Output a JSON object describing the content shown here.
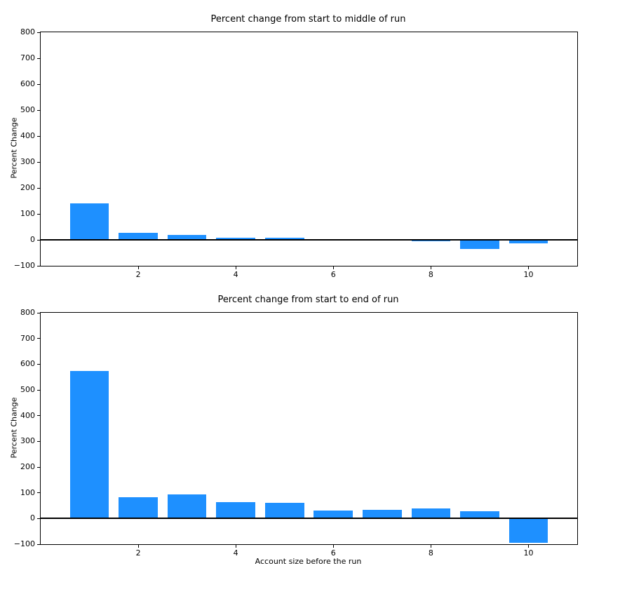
{
  "page": {
    "background": "#ffffff",
    "text_color": "#000000"
  },
  "chart_data": [
    {
      "type": "bar",
      "title": "Percent change from start to middle of run",
      "ylabel": "Percent Change",
      "xlabel": "",
      "x": [
        1,
        2,
        3,
        4,
        5,
        6,
        7,
        8,
        9,
        10
      ],
      "values": [
        140,
        27,
        20,
        8,
        8,
        4,
        1,
        -6,
        -35,
        -14
      ],
      "ylim": [
        -100,
        800
      ],
      "xlim": [
        0,
        11
      ],
      "yticks": [
        -100,
        0,
        100,
        200,
        300,
        400,
        500,
        600,
        700,
        800
      ],
      "xticks": [
        2,
        4,
        6,
        8,
        10
      ],
      "bar_width": 0.8,
      "bar_color": "#1E90FF",
      "zero_line": true,
      "grid": false,
      "legend": null
    },
    {
      "type": "bar",
      "title": "Percent change from start to end of run",
      "ylabel": "Percent Change",
      "xlabel": "Account size before the run",
      "x": [
        1,
        2,
        3,
        4,
        5,
        6,
        7,
        8,
        9,
        10
      ],
      "values": [
        575,
        82,
        95,
        63,
        60,
        32,
        35,
        38,
        29,
        -95
      ],
      "ylim": [
        -100,
        800
      ],
      "xlim": [
        0,
        11
      ],
      "yticks": [
        -100,
        0,
        100,
        200,
        300,
        400,
        500,
        600,
        700,
        800
      ],
      "xticks": [
        2,
        4,
        6,
        8,
        10
      ],
      "bar_width": 0.8,
      "bar_color": "#1E90FF",
      "zero_line": true,
      "grid": false,
      "legend": null
    }
  ]
}
